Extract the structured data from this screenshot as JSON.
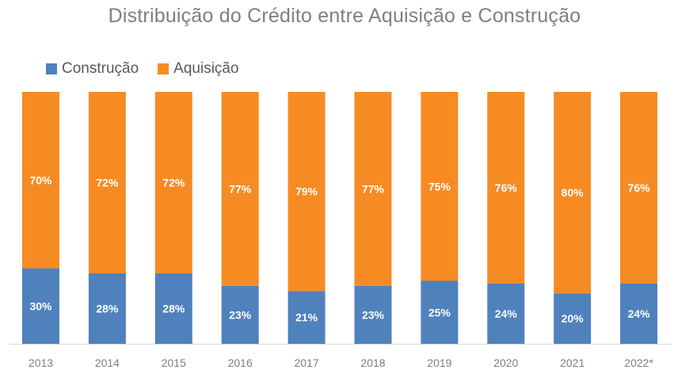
{
  "chart_data": {
    "type": "bar",
    "stacked": true,
    "title": "Distribuição do Crédito entre Aquisição e Construção",
    "categories": [
      "2013",
      "2014",
      "2015",
      "2016",
      "2017",
      "2018",
      "2019",
      "2020",
      "2021",
      "2022*"
    ],
    "series": [
      {
        "name": "Construção",
        "color": "#4f81bd",
        "values": [
          30,
          28,
          28,
          23,
          21,
          23,
          25,
          24,
          20,
          24
        ],
        "labels": [
          "30%",
          "28%",
          "28%",
          "23%",
          "21%",
          "23%",
          "25%",
          "24%",
          "20%",
          "24%"
        ]
      },
      {
        "name": "Aquisição",
        "color": "#f68b24",
        "values": [
          70,
          72,
          72,
          77,
          79,
          77,
          75,
          76,
          80,
          76
        ],
        "labels": [
          "70%",
          "72%",
          "72%",
          "77%",
          "79%",
          "77%",
          "75%",
          "76%",
          "80%",
          "76%"
        ]
      }
    ],
    "ylim": [
      0,
      100
    ],
    "legend_position": "top-left",
    "grid": false
  }
}
